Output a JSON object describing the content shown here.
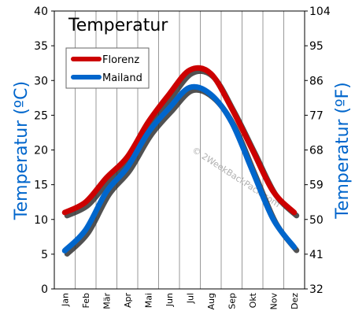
{
  "chart_data": {
    "type": "line",
    "title": "Temperatur",
    "categories": [
      "Jan",
      "Feb",
      "Mär",
      "Apr",
      "Mai",
      "Jun",
      "Jul",
      "Aug",
      "Sep",
      "Okt",
      "Nov",
      "Dez"
    ],
    "series": [
      {
        "name": "Florenz",
        "color": "#cc0000",
        "values": [
          11,
          12.5,
          16,
          19,
          24,
          28,
          31.5,
          31,
          26,
          20,
          14,
          11
        ]
      },
      {
        "name": "Mailand",
        "color": "#0066cc",
        "values": [
          5.5,
          8.5,
          14,
          17.5,
          22.5,
          26,
          29,
          28,
          24,
          17,
          10,
          6
        ]
      }
    ],
    "ylabel": "Temperatur (ºC)",
    "ylabel_right": "Temperatur (ºF)",
    "ylim": [
      0,
      40
    ],
    "yticks": [
      0,
      5,
      10,
      15,
      20,
      25,
      30,
      35,
      40
    ],
    "yticks_right": [
      32,
      41,
      50,
      59,
      68,
      77,
      86,
      95,
      104
    ],
    "ylim_right": [
      32,
      104
    ],
    "grid": "vertical",
    "legend": "top-left",
    "watermark": "© 2WeekBackPack.com",
    "colors": {
      "left_axis_label": "#0066cc",
      "right_axis_label": "#0066cc",
      "grid": "#999999",
      "shadow": "#333333"
    }
  }
}
